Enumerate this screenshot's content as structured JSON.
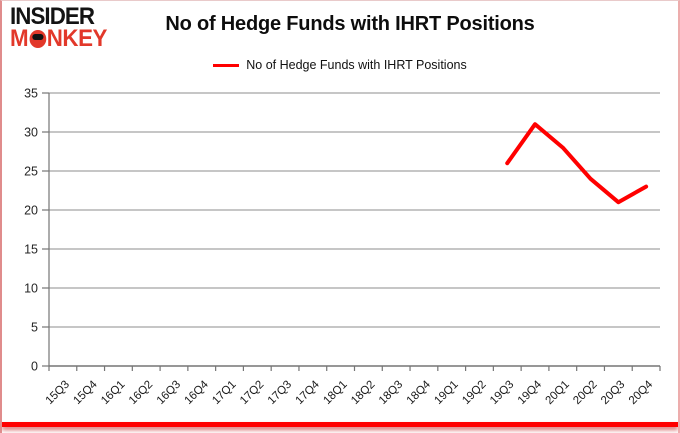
{
  "logo": {
    "line1": "INSIDER",
    "line2": "MONKEY"
  },
  "header": {
    "title": "No of Hedge Funds with IHRT Positions"
  },
  "legend": {
    "label": "No of Hedge Funds with IHRT Positions"
  },
  "colors": {
    "series": "#ff0000",
    "grid": "#8c8c8c",
    "axis": "#757575",
    "logo_black": "#131313",
    "logo_red": "#e2382a",
    "bottom_bar": "#ff0000"
  },
  "chart_data": {
    "type": "line",
    "title": "No of Hedge Funds with IHRT Positions",
    "xlabel": "",
    "ylabel": "",
    "ylim": [
      0,
      35
    ],
    "yticks": [
      0,
      5,
      10,
      15,
      20,
      25,
      30,
      35
    ],
    "grid": true,
    "legend_position": "top",
    "categories": [
      "15Q3",
      "15Q4",
      "16Q1",
      "16Q2",
      "16Q3",
      "16Q4",
      "17Q1",
      "17Q2",
      "17Q3",
      "17Q4",
      "18Q1",
      "18Q2",
      "18Q3",
      "18Q4",
      "19Q1",
      "19Q2",
      "19Q3",
      "19Q4",
      "20Q1",
      "20Q2",
      "20Q3",
      "20Q4"
    ],
    "series": [
      {
        "name": "No of Hedge Funds with IHRT Positions",
        "color": "#ff0000",
        "values": [
          null,
          null,
          null,
          null,
          null,
          null,
          null,
          null,
          null,
          null,
          null,
          null,
          null,
          null,
          null,
          null,
          26,
          31,
          28,
          24,
          21,
          23
        ]
      }
    ]
  }
}
